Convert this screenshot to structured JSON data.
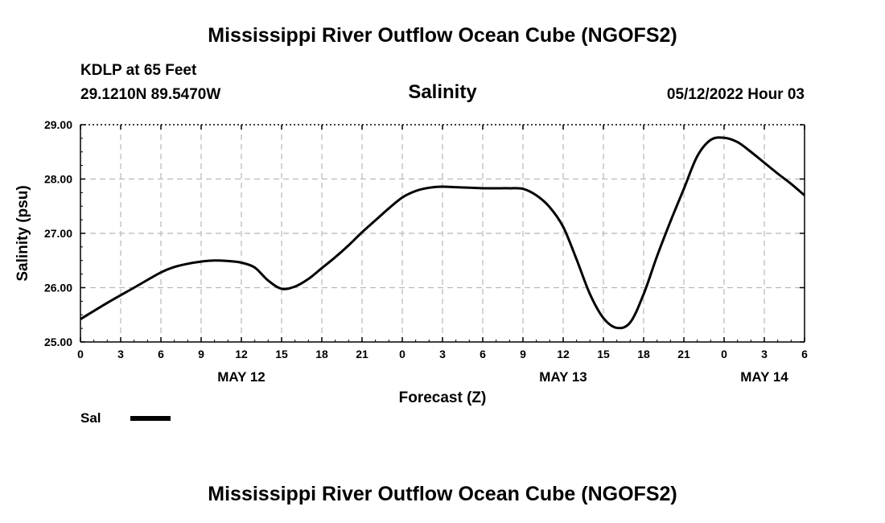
{
  "page": {
    "title": "Mississippi River Outflow Ocean Cube (NGOFS2)",
    "footer_title": "Mississippi River Outflow Ocean Cube (NGOFS2)",
    "station": "KDLP at 65 Feet",
    "coords": "29.1210N  89.5470W",
    "datetime": "05/12/2022 Hour 03"
  },
  "legend": {
    "label": "Sal",
    "color": "#000000"
  },
  "chart_data": {
    "type": "line",
    "title": "Salinity",
    "xlabel": "Forecast (Z)",
    "ylabel": "Salinity (psu)",
    "xlim": [
      0,
      54
    ],
    "ylim": [
      25.0,
      29.0
    ],
    "grid": true,
    "legend_position": "bottom-left",
    "x_unit": "hours since 05/12/2022 00Z",
    "x_ticks": [
      0,
      3,
      6,
      9,
      12,
      15,
      18,
      21,
      24,
      27,
      30,
      33,
      36,
      39,
      42,
      45,
      48,
      51,
      54
    ],
    "x_tick_labels": [
      "0",
      "3",
      "6",
      "9",
      "12",
      "15",
      "18",
      "21",
      "0",
      "3",
      "6",
      "9",
      "12",
      "15",
      "18",
      "21",
      "0",
      "3",
      "6"
    ],
    "x_day_labels": [
      {
        "x": 12,
        "label": "MAY 12"
      },
      {
        "x": 36,
        "label": "MAY 13"
      },
      {
        "x": 51,
        "label": "MAY 14"
      }
    ],
    "y_ticks": [
      25.0,
      26.0,
      27.0,
      28.0,
      29.0
    ],
    "y_tick_labels": [
      "25.00",
      "26.00",
      "27.00",
      "28.00",
      "29.00"
    ],
    "series": [
      {
        "name": "Sal",
        "color": "#000000",
        "x": [
          0,
          2,
          4,
          6,
          7,
          8,
          9,
          10,
          11,
          12,
          13,
          14,
          15,
          16,
          17,
          18,
          19,
          20,
          21,
          22,
          23,
          24,
          25,
          26,
          27,
          28,
          29,
          30,
          31,
          32,
          33,
          34,
          35,
          36,
          37,
          38,
          39,
          40,
          41,
          42,
          43,
          44,
          45,
          46,
          47,
          48,
          49,
          50,
          51,
          52,
          53,
          54
        ],
        "y": [
          25.42,
          25.72,
          26.0,
          26.28,
          26.38,
          26.44,
          26.48,
          26.5,
          26.49,
          26.46,
          26.37,
          26.13,
          25.98,
          26.02,
          26.16,
          26.36,
          26.56,
          26.78,
          27.02,
          27.24,
          27.46,
          27.66,
          27.78,
          27.84,
          27.86,
          27.85,
          27.84,
          27.83,
          27.83,
          27.83,
          27.82,
          27.7,
          27.48,
          27.12,
          26.52,
          25.88,
          25.44,
          25.26,
          25.36,
          25.88,
          26.58,
          27.22,
          27.82,
          28.42,
          28.72,
          28.76,
          28.68,
          28.5,
          28.3,
          28.1,
          27.91,
          27.7
        ]
      }
    ]
  }
}
